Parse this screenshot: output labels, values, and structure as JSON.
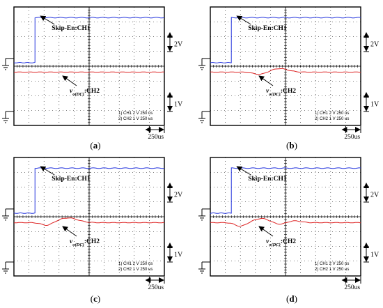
{
  "panels_label": [
    "(a)",
    "(b)",
    "(c)",
    "(d)"
  ],
  "colors": {
    "ch1": "#2233dd",
    "ch2": "#dd2222",
    "frame": "#000000",
    "grid": "#000000"
  },
  "chart_data": [
    {
      "type": "line",
      "panel_label": "(a)",
      "series": [
        {
          "label": "Skip-En:CH1",
          "low_level_div": -2.15,
          "high_level_div": 0.65,
          "step_time_div": 1.4
        },
        {
          "label_prefix": "v",
          "label_sub": "o(DC)",
          "label_suffix": ":CH2",
          "ripple": "flat"
        }
      ],
      "scale_ch1": "2V",
      "scale_ch2": "1V",
      "time_scale": "250us",
      "readout": [
        "1) CH1  2  V    250 us",
        "2) CH2  1  V    250 us"
      ]
    },
    {
      "type": "line",
      "panel_label": "(b)",
      "series": [
        {
          "label": "Skip-En:CH1",
          "low_level_div": -2.15,
          "high_level_div": 0.65,
          "step_time_div": 1.4
        },
        {
          "label_prefix": "v",
          "label_sub": "o(DC)",
          "label_suffix": ":CH2",
          "ripple": "single-bump"
        }
      ],
      "scale_ch1": "2V",
      "scale_ch2": "1V",
      "time_scale": "250us",
      "readout": [
        "1) CH1  2  V    250 us",
        "2) CH2  1  V    250 us"
      ]
    },
    {
      "type": "line",
      "panel_label": "(c)",
      "series": [
        {
          "label": "Skip-En:CH1",
          "low_level_div": -2.15,
          "high_level_div": 0.65,
          "step_time_div": 1.4
        },
        {
          "label_prefix": "v",
          "label_sub": "o(DC)",
          "label_suffix": ":CH2",
          "ripple": "dip-and-bump"
        }
      ],
      "scale_ch1": "2V",
      "scale_ch2": "1V",
      "time_scale": "250us",
      "readout": [
        "1) CH1  2  V    250 us",
        "2) CH2  1  V    250 us"
      ]
    },
    {
      "type": "line",
      "panel_label": "(d)",
      "series": [
        {
          "label": "Skip-En:CH1",
          "low_level_div": -2.15,
          "high_level_div": 0.65,
          "step_time_div": 1.4
        },
        {
          "label_prefix": "v",
          "label_sub": "o(DC)",
          "label_suffix": ":CH2",
          "ripple": "multi-ripple"
        }
      ],
      "scale_ch1": "2V",
      "scale_ch2": "1V",
      "time_scale": "250us",
      "readout": [
        "1) CH1  2  V    250 us",
        "2) CH2  1  V    250 us"
      ]
    }
  ]
}
